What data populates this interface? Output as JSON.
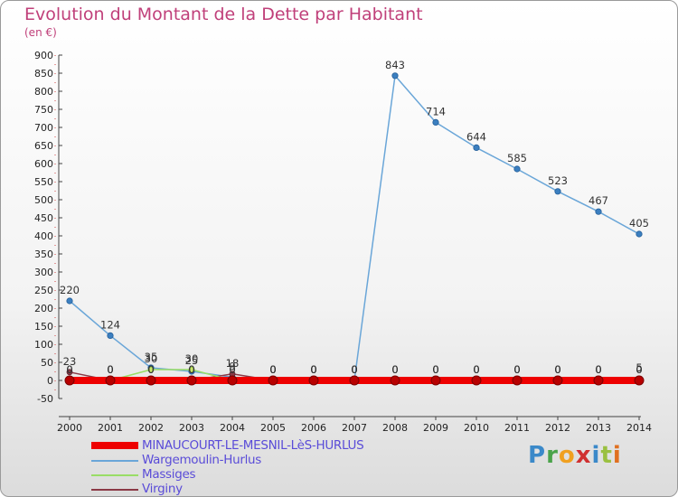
{
  "title": "Evolution du Montant de la Dette par Habitant",
  "unit": "(en €)",
  "brand": "Proxiti",
  "chart_data": {
    "type": "line",
    "title": "Evolution du Montant de la Dette par Habitant",
    "ylabel": "(en €)",
    "xlabel": "",
    "x": [
      "2000",
      "2001",
      "2002",
      "2003",
      "2004",
      "2005",
      "2006",
      "2007",
      "2008",
      "2009",
      "2010",
      "2011",
      "2012",
      "2013",
      "2014"
    ],
    "ylim": [
      -50,
      900
    ],
    "yticks": [
      -50,
      0,
      50,
      100,
      150,
      200,
      250,
      300,
      350,
      400,
      450,
      500,
      550,
      600,
      650,
      700,
      750,
      800,
      850,
      900
    ],
    "grid": false,
    "legend_position": "bottom-left",
    "series": [
      {
        "name": "MINAUCOURT-LE-MESNIL-LèS-HURLUS",
        "color": "#ee0000",
        "values": [
          0,
          0,
          0,
          0,
          0,
          0,
          0,
          0,
          0,
          0,
          0,
          0,
          0,
          0,
          0
        ],
        "labels": [
          "0",
          "0",
          "0",
          "0",
          "0",
          "0",
          "0",
          "0",
          "0",
          "0",
          "0",
          "0",
          "0",
          "0",
          "0"
        ]
      },
      {
        "name": "Wargemoulin-Hurlus",
        "color": "#6aa6d8",
        "values": [
          220,
          124,
          35,
          25,
          9,
          0,
          0,
          0,
          843,
          714,
          644,
          585,
          523,
          467,
          405
        ],
        "labels": [
          "220",
          "124",
          "35",
          "25",
          "9",
          "0",
          "0",
          "0",
          "843",
          "714",
          "644",
          "585",
          "523",
          "467",
          "405"
        ]
      },
      {
        "name": "Massiges",
        "color": "#99dd66",
        "values": [
          0,
          0,
          30,
          30,
          0,
          0,
          0,
          0,
          0,
          0,
          0,
          0,
          0,
          0,
          0
        ],
        "labels": [
          "0",
          "0",
          "30",
          "30",
          "0",
          "0",
          "0",
          "0",
          "0",
          "0",
          "0",
          "0",
          "0",
          "0",
          "0"
        ]
      },
      {
        "name": "Virginy",
        "color": "#8b3a46",
        "values": [
          23,
          0,
          0,
          0,
          18,
          0,
          0,
          0,
          0,
          0,
          0,
          0,
          0,
          0,
          5
        ],
        "labels": [
          "23",
          "0",
          "0",
          "0",
          "18",
          "0",
          "0",
          "0",
          "0",
          "0",
          "0",
          "0",
          "0",
          "0",
          "5"
        ]
      }
    ]
  }
}
